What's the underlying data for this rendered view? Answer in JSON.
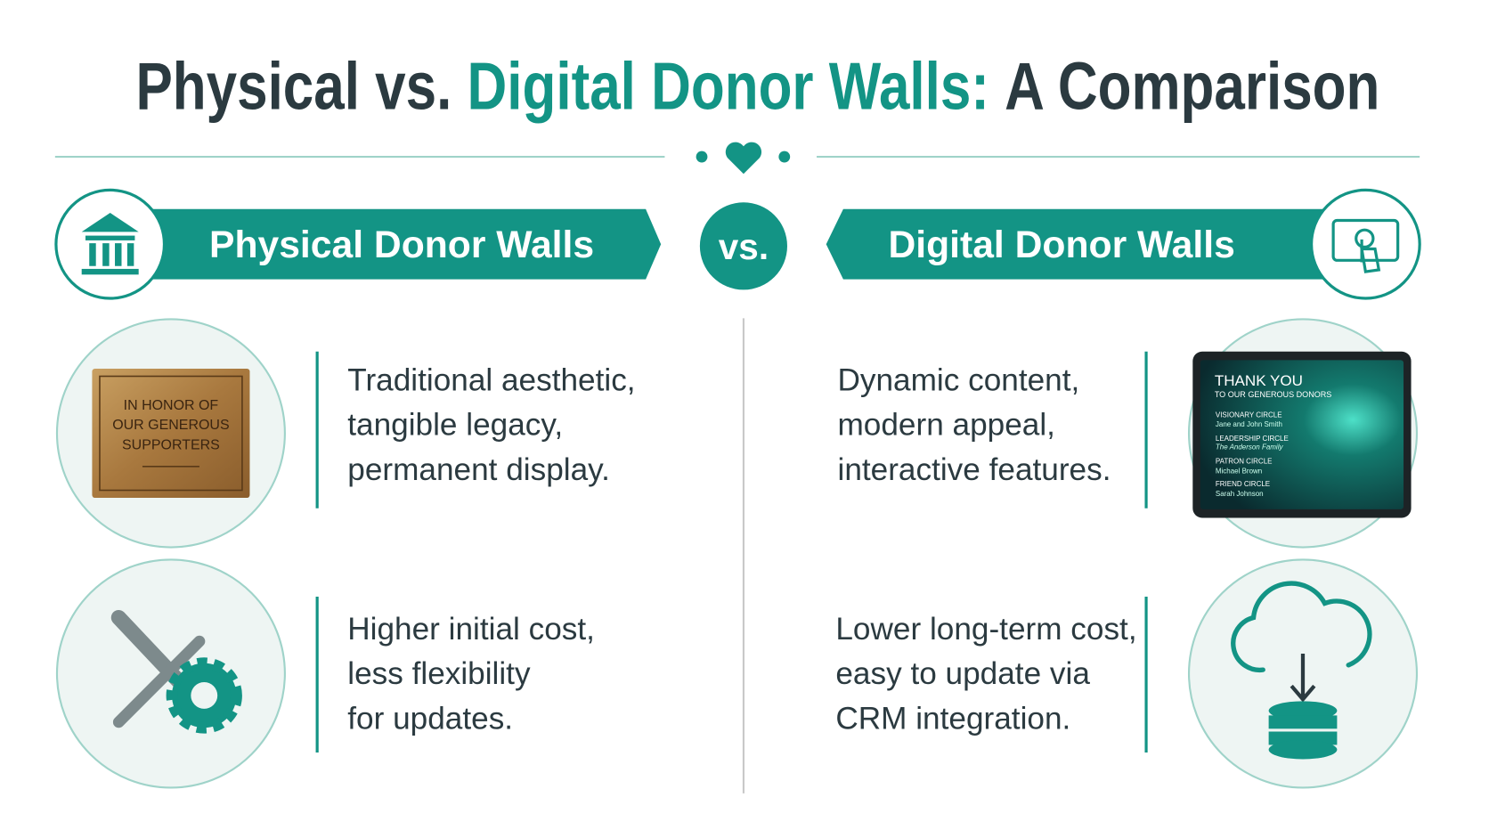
{
  "title": {
    "part1": "Physical vs.",
    "part2": "Digital Donor Walls:",
    "part3": "A Comparison"
  },
  "vs": "vs.",
  "left": {
    "heading": "Physical Donor Walls",
    "items": [
      {
        "lines": [
          "Traditional aesthetic,",
          "tangible legacy,",
          "permanent display."
        ]
      },
      {
        "lines": [
          "Higher initial cost,",
          "less flexibility",
          "for updates."
        ]
      }
    ],
    "plaque": [
      "IN HONOR OF",
      "OUR GENEROUS",
      "SUPPORTERS"
    ]
  },
  "right": {
    "heading": "Digital Donor Walls",
    "items": [
      {
        "lines": [
          "Dynamic content,",
          "modern appeal,",
          "interactive features."
        ]
      },
      {
        "lines": [
          "Lower long-term cost,",
          "easy to update via",
          "CRM integration."
        ]
      }
    ],
    "screen": {
      "title": "THANK YOU",
      "subtitle": "TO OUR GENEROUS DONORS",
      "circles": [
        {
          "name": "VISIONARY CIRCLE",
          "donor": "Jane and John Smith"
        },
        {
          "name": "LEADERSHIP CIRCLE",
          "donor": "The Anderson Family"
        },
        {
          "name": "PATRON CIRCLE",
          "donor": "Michael Brown"
        },
        {
          "name": "FRIEND CIRCLE",
          "donor": "Sarah Johnson"
        }
      ]
    }
  }
}
